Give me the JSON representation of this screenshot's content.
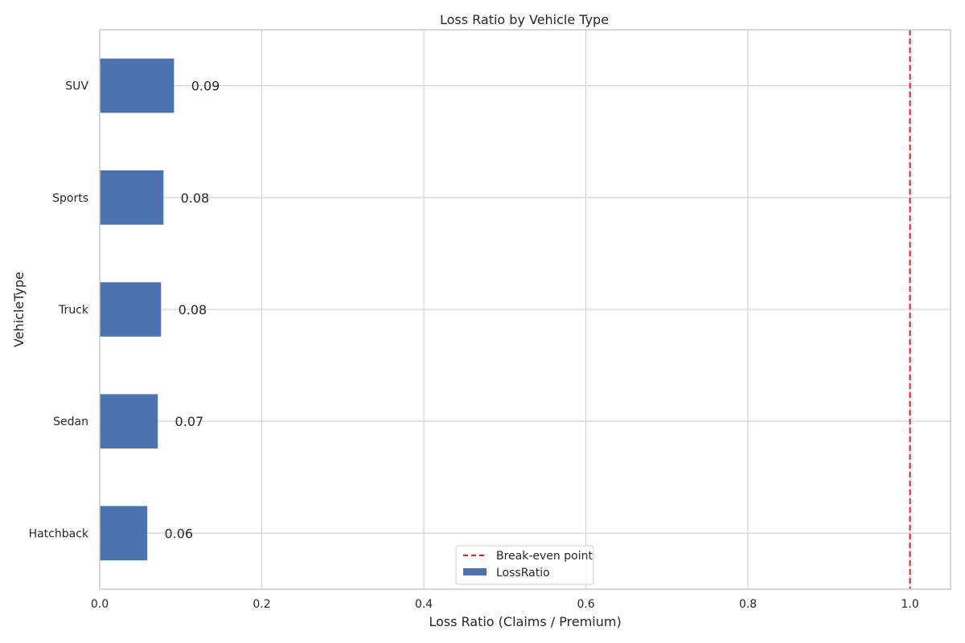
{
  "chart_data": {
    "type": "bar",
    "orientation": "horizontal",
    "title": "Loss Ratio by Vehicle Type",
    "xlabel": "Loss Ratio (Claims / Premium)",
    "ylabel": "VehicleType",
    "categories": [
      "Hatchback",
      "Sedan",
      "Truck",
      "Sports",
      "SUV"
    ],
    "series": [
      {
        "name": "LossRatio",
        "values": [
          0.059,
          0.072,
          0.076,
          0.079,
          0.092
        ],
        "color": "#4c72b0"
      }
    ],
    "data_labels": [
      "0.06",
      "0.07",
      "0.08",
      "0.08",
      "0.09"
    ],
    "xlim": [
      0,
      1.05
    ],
    "xticks": [
      0.0,
      0.2,
      0.4,
      0.6,
      0.8,
      1.0
    ],
    "xtick_labels": [
      "0.0",
      "0.2",
      "0.4",
      "0.6",
      "0.8",
      "1.0"
    ],
    "reference_line": {
      "name": "Break-even point",
      "x": 1.0,
      "color": "#e31a1c",
      "style": "dashed"
    },
    "legend": {
      "placement": "bottom-center",
      "entries": [
        "Break-even point",
        "LossRatio"
      ]
    },
    "grid": true
  }
}
